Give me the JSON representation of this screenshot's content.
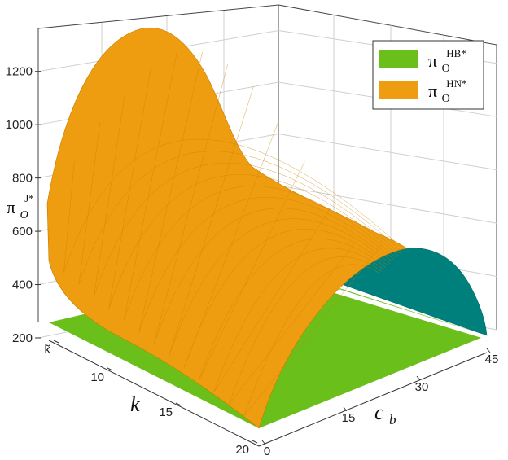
{
  "chart_data": {
    "type": "surface3d",
    "zlabel": "π",
    "zlabel_sub": "O",
    "zlabel_sup": "J*",
    "xlabel": "k",
    "ylabel": "c",
    "ylabel_sub": "b",
    "zlim": [
      200,
      1300
    ],
    "z_ticks": [
      "200",
      "400",
      "600",
      "800",
      "1000",
      "1200"
    ],
    "k_ticks": [
      "k̃",
      "10",
      "15",
      "20"
    ],
    "cb_ticks": [
      "0",
      "15",
      "30",
      "45"
    ],
    "grid": true,
    "legend_position": "top-right",
    "series": [
      {
        "name": "π",
        "name_sub": "O",
        "name_sup": "HB*",
        "color": "#6bbf1a",
        "underside_color": "#00807d",
        "description_values": {
          "k_range": [
            "k̃",
            20
          ],
          "cb_range": [
            0,
            45
          ],
          "z_at_cb0": 240,
          "z_peak": 620
        }
      },
      {
        "name": "π",
        "name_sub": "O",
        "name_sup": "HN*",
        "color": "#ee9c10",
        "peak_value": 1340,
        "k_range": [
          "k̃",
          20
        ],
        "cb_range": [
          0,
          45
        ],
        "values": [
          [
            700,
            1340,
            780,
            440
          ],
          [
            640,
            1100,
            700,
            420
          ],
          [
            560,
            900,
            640,
            360
          ],
          [
            420,
            560,
            430,
            240
          ]
        ]
      }
    ]
  }
}
